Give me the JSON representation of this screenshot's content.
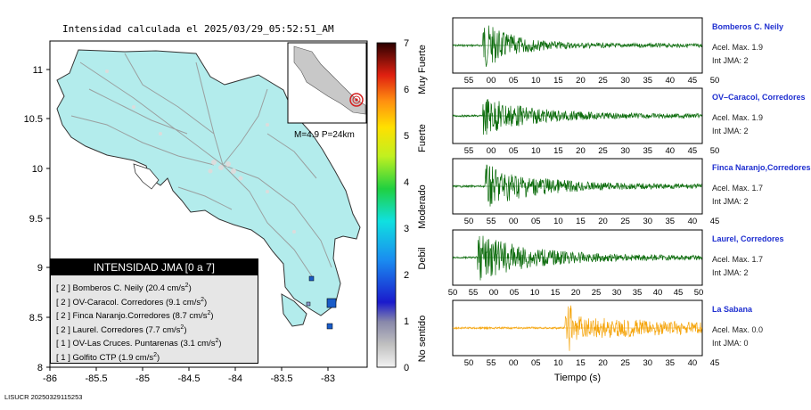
{
  "map": {
    "title": "Intensidad calculada el 2025/03/29_05:52:51_AM",
    "x_ticks": [
      "-86",
      "-85.5",
      "-85",
      "-84.5",
      "-84",
      "-83.5",
      "-83"
    ],
    "y_ticks": [
      "11",
      "10.5",
      "10",
      "9.5",
      "9",
      "8.5",
      "8"
    ],
    "inset_caption": "M=4.9 P=24km",
    "footer": "LISUCR 20250329115253"
  },
  "colorbar": {
    "ticks": [
      "7",
      "6",
      "5",
      "4",
      "3",
      "2",
      "1",
      "0"
    ],
    "levels": [
      "Muy Fuerte",
      "Fuerte",
      "Moderado",
      "Debil",
      "No sentido"
    ]
  },
  "legend": {
    "title": "INTENSIDAD JMA [0 a 7]",
    "rows": [
      {
        "jma": "[ 2 ]",
        "name": "Bomberos C. Neily (20.4 cm/s",
        "sup": "2",
        "close": ")"
      },
      {
        "jma": "[ 2 ]",
        "name": "OV-Caracol. Corredores (9.1 cm/s",
        "sup": "2",
        "close": ")"
      },
      {
        "jma": "[ 2 ]",
        "name": "Finca Naranjo.Corredores (8.7 cm/s",
        "sup": "2",
        "close": ")"
      },
      {
        "jma": "[ 2 ]",
        "name": "Laurel. Corredores (7.7 cm/s",
        "sup": "2",
        "close": ")"
      },
      {
        "jma": "[ 1 ]",
        "name": "OV-Las Cruces. Puntarenas (3.1 cm/s",
        "sup": "2",
        "close": ")"
      },
      {
        "jma": "[ 1 ]",
        "name": "Golfito CTP (1.9 cm/s",
        "sup": "2",
        "close": ")"
      }
    ]
  },
  "stations": [
    {
      "name": "Bomberos C. Neily",
      "acc": "Acel. Max. 1.9",
      "jma": "Int JMA: 2",
      "color": "#0b6b0b",
      "ticks": [
        "55",
        "00",
        "05",
        "10",
        "15",
        "20",
        "25",
        "30",
        "35",
        "40",
        "45",
        "50"
      ],
      "onset": 0.12,
      "peak": 0.9,
      "decay": 0.12
    },
    {
      "name": "OV–Caracol, Corredores",
      "acc": "Acel. Max. 1.9",
      "jma": "Int JMA: 2",
      "color": "#0b6b0b",
      "ticks": [
        "55",
        "00",
        "05",
        "10",
        "15",
        "20",
        "25",
        "30",
        "35",
        "40",
        "45",
        "50"
      ],
      "onset": 0.12,
      "peak": 0.75,
      "decay": 0.18
    },
    {
      "name": "Finca Naranjo,Corredores",
      "acc": "Acel. Max. 1.7",
      "jma": "Int JMA: 2",
      "color": "#0b6b0b",
      "ticks": [
        "50",
        "55",
        "00",
        "05",
        "10",
        "15",
        "20",
        "25",
        "30",
        "35",
        "40",
        "45"
      ],
      "onset": 0.13,
      "peak": 0.8,
      "decay": 0.2
    },
    {
      "name": "Laurel, Corredores",
      "acc": "Acel. Max. 1.7",
      "jma": "Int JMA: 2",
      "color": "#0b6b0b",
      "ticks": [
        "50",
        "55",
        "00",
        "05",
        "10",
        "15",
        "20",
        "25",
        "30",
        "35",
        "40",
        "45",
        "50"
      ],
      "onset": 0.1,
      "peak": 0.85,
      "decay": 0.22
    },
    {
      "name": "La Sabana",
      "acc": "Acel. Max. 0.0",
      "jma": "Int JMA: 0",
      "color": "#f5a40a",
      "ticks": [
        "50",
        "55",
        "00",
        "05",
        "10",
        "15",
        "20",
        "25",
        "30",
        "35",
        "40",
        "45"
      ],
      "onset": 0.45,
      "peak": 0.45,
      "decay": 0.5
    }
  ],
  "xlabel": "Tiempo (s)"
}
